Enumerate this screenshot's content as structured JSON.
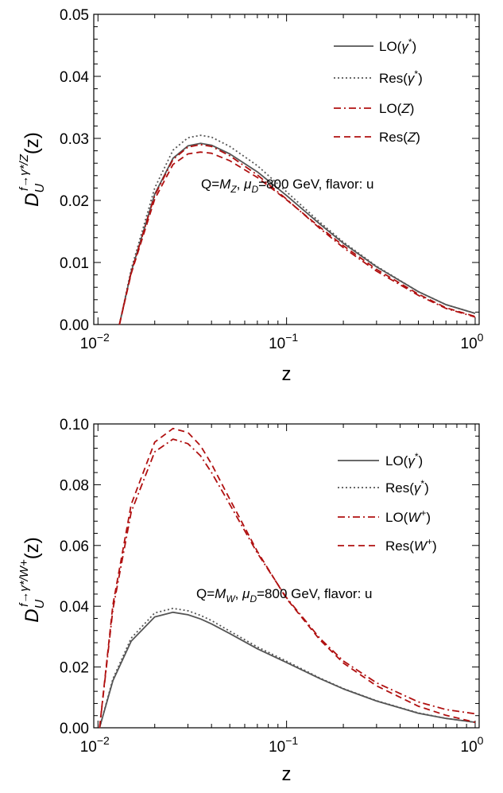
{
  "chart_data": [
    {
      "type": "line",
      "x_scale": "log",
      "xlabel": "z",
      "ylabel": "D_U^{f→γ*/Z}(z)",
      "xlim": [
        0.0095,
        1.05
      ],
      "ylim": [
        0,
        0.05
      ],
      "x_ticks": [
        0.01,
        0.1,
        1.0
      ],
      "x_tick_labels": [
        {
          "base": "10",
          "exp": "−2"
        },
        {
          "base": "10",
          "exp": "−1"
        },
        {
          "base": "10",
          "exp": "0"
        }
      ],
      "y_ticks": [
        0,
        0.01,
        0.02,
        0.03,
        0.04,
        0.05
      ],
      "y_tick_labels": [
        "0.00",
        "0.01",
        "0.02",
        "0.03",
        "0.04",
        "0.05"
      ],
      "annotation": "Q=M_Z, μ_D=800 GeV, flavor: u",
      "legend_position": "top-right",
      "x": [
        0.013,
        0.015,
        0.02,
        0.025,
        0.03,
        0.035,
        0.04,
        0.05,
        0.07,
        0.1,
        0.15,
        0.2,
        0.3,
        0.5,
        0.7,
        1.0
      ],
      "series": [
        {
          "name": "LO(γ*)",
          "color": "#555555",
          "dash": "solid",
          "values": [
            0.0,
            0.0085,
            0.021,
            0.0268,
            0.0288,
            0.0292,
            0.0289,
            0.0275,
            0.0246,
            0.0208,
            0.0162,
            0.0131,
            0.0093,
            0.0053,
            0.0032,
            0.0018
          ]
        },
        {
          "name": "Res(γ*)",
          "color": "#555555",
          "dash": "dotted",
          "values": [
            0.0,
            0.0089,
            0.022,
            0.0281,
            0.0301,
            0.0305,
            0.0302,
            0.0287,
            0.0256,
            0.0214,
            0.0165,
            0.0133,
            0.0094,
            0.0053,
            0.0032,
            0.0018
          ]
        },
        {
          "name": "LO(Z)",
          "color": "#b01010",
          "dash": "dashdot",
          "values": [
            0.0,
            0.0084,
            0.0208,
            0.0266,
            0.0286,
            0.029,
            0.0287,
            0.0272,
            0.0241,
            0.0202,
            0.0155,
            0.0124,
            0.0086,
            0.0047,
            0.0026,
            0.0012
          ]
        },
        {
          "name": "Res(Z)",
          "color": "#b01010",
          "dash": "dashed",
          "values": [
            0.0,
            0.0082,
            0.0202,
            0.0258,
            0.0275,
            0.0278,
            0.0276,
            0.0264,
            0.0237,
            0.0201,
            0.0157,
            0.0127,
            0.0089,
            0.0049,
            0.0027,
            0.0013
          ]
        }
      ]
    },
    {
      "type": "line",
      "x_scale": "log",
      "xlabel": "z",
      "ylabel": "D_U^{f→γ*/W+}(z)",
      "xlim": [
        0.0095,
        1.05
      ],
      "ylim": [
        0,
        0.1
      ],
      "x_ticks": [
        0.01,
        0.1,
        1.0
      ],
      "x_tick_labels": [
        {
          "base": "10",
          "exp": "−2"
        },
        {
          "base": "10",
          "exp": "−1"
        },
        {
          "base": "10",
          "exp": "0"
        }
      ],
      "y_ticks": [
        0,
        0.02,
        0.04,
        0.06,
        0.08,
        0.1
      ],
      "y_tick_labels": [
        "0.00",
        "0.02",
        "0.04",
        "0.06",
        "0.08",
        "0.10"
      ],
      "annotation": "Q=M_W, μ_D=800 GeV, flavor: u",
      "legend_position": "top-right",
      "x": [
        0.0102,
        0.012,
        0.015,
        0.02,
        0.025,
        0.03,
        0.035,
        0.04,
        0.05,
        0.07,
        0.1,
        0.15,
        0.2,
        0.3,
        0.5,
        0.7,
        1.0
      ],
      "series": [
        {
          "name": "LO(γ*)",
          "color": "#555555",
          "dash": "solid",
          "values": [
            0.0,
            0.0155,
            0.0285,
            0.0365,
            0.038,
            0.0372,
            0.0358,
            0.0342,
            0.031,
            0.026,
            0.0215,
            0.0162,
            0.0128,
            0.0088,
            0.0048,
            0.0031,
            0.0018
          ]
        },
        {
          "name": "Res(γ*)",
          "color": "#555555",
          "dash": "dotted",
          "values": [
            0.0,
            0.0161,
            0.0295,
            0.0378,
            0.0393,
            0.0385,
            0.037,
            0.0353,
            0.0318,
            0.0266,
            0.0219,
            0.0164,
            0.0129,
            0.0089,
            0.0049,
            0.0031,
            0.0018
          ]
        },
        {
          "name": "LO(W⁺)",
          "color": "#b01010",
          "dash": "dashdot",
          "values": [
            0.0,
            0.039,
            0.071,
            0.0908,
            0.095,
            0.0935,
            0.0895,
            0.084,
            0.0735,
            0.0575,
            0.0428,
            0.0295,
            0.022,
            0.0148,
            0.0085,
            0.006,
            0.0046
          ]
        },
        {
          "name": "Res(W⁺)",
          "color": "#b01010",
          "dash": "dashed",
          "values": [
            0.0,
            0.0405,
            0.0735,
            0.094,
            0.0985,
            0.0972,
            0.0928,
            0.0868,
            0.0752,
            0.058,
            0.0425,
            0.029,
            0.0213,
            0.0138,
            0.0071,
            0.0041,
            0.0018
          ]
        }
      ]
    }
  ]
}
